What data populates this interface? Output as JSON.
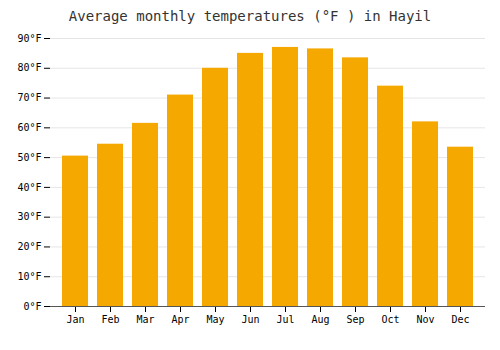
{
  "chart_data": {
    "type": "bar",
    "title": "Average monthly temperatures (°F ) in Hayil",
    "categories": [
      "Jan",
      "Feb",
      "Mar",
      "Apr",
      "May",
      "Jun",
      "Jul",
      "Aug",
      "Sep",
      "Oct",
      "Nov",
      "Dec"
    ],
    "values": [
      50.5,
      54.5,
      61.5,
      71.0,
      80.0,
      85.0,
      87.0,
      86.5,
      83.5,
      74.0,
      62.0,
      53.5
    ],
    "color": "#F5A800",
    "ylim": [
      0,
      90
    ],
    "yticks": [
      {
        "value": 0,
        "label": "0°F"
      },
      {
        "value": 10,
        "label": "10°F"
      },
      {
        "value": 20,
        "label": "20°F"
      },
      {
        "value": 30,
        "label": "30°F"
      },
      {
        "value": 40,
        "label": "40°F"
      },
      {
        "value": 50,
        "label": "50°F"
      },
      {
        "value": 60,
        "label": "60°F"
      },
      {
        "value": 70,
        "label": "70°F"
      },
      {
        "value": 80,
        "label": "80°F"
      },
      {
        "value": 90,
        "label": "90°F"
      }
    ],
    "grid": true
  }
}
